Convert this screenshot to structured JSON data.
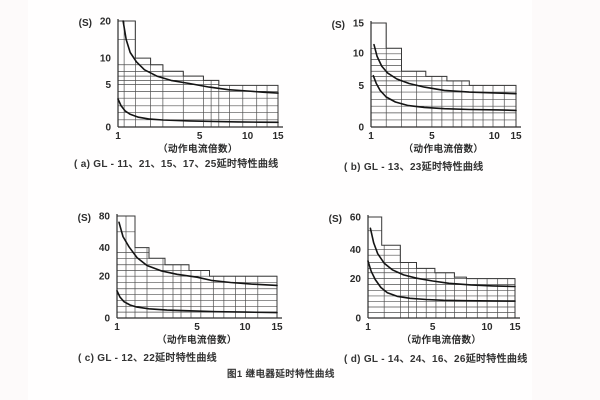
{
  "page": {
    "figure_caption": "图1  继电器延时特性曲线",
    "background": "#fdfafa",
    "paper": "#fffefe",
    "ink": "#2b2b2b",
    "grid_color": "#4f4f4f",
    "curve_color": "#141414"
  },
  "chart_data": [
    {
      "type": "line",
      "panel": "a",
      "title": "( a) GL - 11、21、15、17、25延时特性曲线",
      "xlabel": "（动作电流倍数）",
      "ylabel": "(S)",
      "xlim": [
        1,
        15
      ],
      "ylim": [
        0,
        20
      ],
      "grid": true,
      "legend": "none",
      "xticks": [
        {
          "v": 1,
          "f": 0
        },
        {
          "v": 5,
          "f": 0.51
        },
        {
          "v": 10,
          "f": 0.81
        },
        {
          "v": 15,
          "f": 1
        }
      ],
      "yticks": [
        {
          "v": 0,
          "f": 0
        },
        {
          "v": 5,
          "f": 0.4
        },
        {
          "v": 10,
          "f": 0.65
        },
        {
          "v": 20,
          "f": 1
        }
      ],
      "tolerance_steps": [
        {
          "to": 1.85,
          "top": 20
        },
        {
          "to": 2.6,
          "top": 10
        },
        {
          "to": 3.2,
          "top": 8.75
        },
        {
          "to": 4.2,
          "top": 7.5
        },
        {
          "to": 5.4,
          "top": 6.6
        },
        {
          "to": 7,
          "top": 5.8
        },
        {
          "to": 15,
          "top": 4.9
        }
      ],
      "h_gridlines": [
        0.85,
        1.7,
        2.5,
        3.4,
        4.2,
        5,
        5.8,
        6.6,
        7.5,
        8.75,
        15
      ],
      "v_gridlines": [
        1.3,
        1.85,
        2.6,
        3.2,
        4.2,
        5.4,
        6.2,
        7,
        8.1,
        9.5,
        11.5,
        13.2
      ],
      "series": [
        {
          "name": "upper limit curve",
          "points": [
            [
              1.25,
              20
            ],
            [
              1.4,
              15
            ],
            [
              1.6,
              11.5
            ],
            [
              1.9,
              9.3
            ],
            [
              2.3,
              7.8
            ],
            [
              2.9,
              6.6
            ],
            [
              3.6,
              5.8
            ],
            [
              4.5,
              5.2
            ],
            [
              6,
              4.7
            ],
            [
              8,
              4.4
            ],
            [
              10,
              4.25
            ],
            [
              12.5,
              4.1
            ],
            [
              15,
              4
            ]
          ]
        },
        {
          "name": "lower limit curve",
          "points": [
            [
              1,
              3.3
            ],
            [
              1.15,
              2.5
            ],
            [
              1.35,
              1.9
            ],
            [
              1.6,
              1.5
            ],
            [
              2,
              1.15
            ],
            [
              2.5,
              0.95
            ],
            [
              3.2,
              0.82
            ],
            [
              4.5,
              0.72
            ],
            [
              6.5,
              0.65
            ],
            [
              9,
              0.6
            ],
            [
              12,
              0.57
            ],
            [
              15,
              0.55
            ]
          ]
        }
      ]
    },
    {
      "type": "line",
      "panel": "b",
      "title": "( b) GL - 13、23延时特性曲线",
      "xlabel": "（动作电流倍数）",
      "ylabel": "(S)",
      "xlim": [
        1,
        15
      ],
      "ylim": [
        0,
        15
      ],
      "grid": true,
      "legend": "none",
      "xticks": [
        {
          "v": 1,
          "f": 0
        },
        {
          "v": 5,
          "f": 0.42
        },
        {
          "v": 10,
          "f": 0.85
        },
        {
          "v": 15,
          "f": 1
        }
      ],
      "yticks": [
        {
          "v": 0,
          "f": 0
        },
        {
          "v": 5,
          "f": 0.4
        },
        {
          "v": 10,
          "f": 0.71
        },
        {
          "v": 15,
          "f": 1
        }
      ],
      "tolerance_steps": [
        {
          "to": 2,
          "top": 15
        },
        {
          "to": 3,
          "top": 10.8
        },
        {
          "to": 4.6,
          "top": 7.2
        },
        {
          "to": 6.2,
          "top": 6.4
        },
        {
          "to": 8,
          "top": 5.7
        },
        {
          "to": 15,
          "top": 5
        }
      ],
      "h_gridlines": [
        0.85,
        1.7,
        2.5,
        3.3,
        4.2,
        5,
        5.7,
        6.4,
        7.2,
        8.1,
        9,
        9.9,
        10.8
      ],
      "v_gridlines": [
        2,
        3,
        4,
        5,
        5.8,
        6.7,
        7.4,
        8.3,
        9.1,
        9.9,
        12.3
      ],
      "series": [
        {
          "name": "upper limit curve",
          "points": [
            [
              1.2,
              11.4
            ],
            [
              1.4,
              9.5
            ],
            [
              1.7,
              8
            ],
            [
              2.1,
              6.9
            ],
            [
              2.7,
              6
            ],
            [
              3.5,
              5.3
            ],
            [
              4.5,
              4.8
            ],
            [
              6,
              4.4
            ],
            [
              8,
              4.2
            ],
            [
              10,
              4.1
            ],
            [
              15,
              4
            ]
          ]
        },
        {
          "name": "lower limit curve",
          "points": [
            [
              1.15,
              6.5
            ],
            [
              1.35,
              5.3
            ],
            [
              1.6,
              4.4
            ],
            [
              2,
              3.6
            ],
            [
              2.6,
              3
            ],
            [
              3.4,
              2.6
            ],
            [
              4.5,
              2.35
            ],
            [
              6,
              2.2
            ],
            [
              8,
              2.1
            ],
            [
              11,
              2.05
            ],
            [
              15,
              2
            ]
          ]
        }
      ]
    },
    {
      "type": "line",
      "panel": "c",
      "title": "( c) GL - 12、22延时特性曲线",
      "xlabel": "（动作电流倍数）",
      "ylabel": "(S)",
      "xlim": [
        1,
        15
      ],
      "ylim": [
        0,
        80
      ],
      "grid": true,
      "legend": "none",
      "xticks": [
        {
          "v": 1,
          "f": 0
        },
        {
          "v": 5,
          "f": 0.5
        },
        {
          "v": 10,
          "f": 0.8
        },
        {
          "v": 15,
          "f": 1
        }
      ],
      "yticks": [
        {
          "v": 0,
          "f": 0
        },
        {
          "v": 20,
          "f": 0.41
        },
        {
          "v": 40,
          "f": 0.69
        },
        {
          "v": 80,
          "f": 1
        }
      ],
      "tolerance_steps": [
        {
          "to": 1.9,
          "top": 80
        },
        {
          "to": 2.6,
          "top": 40
        },
        {
          "to": 3.4,
          "top": 32.5
        },
        {
          "to": 4.6,
          "top": 28
        },
        {
          "to": 6.3,
          "top": 24
        },
        {
          "to": 15,
          "top": 20
        }
      ],
      "h_gridlines": [
        2.8,
        5.6,
        8.4,
        11.2,
        14,
        17,
        20,
        24,
        28,
        32.5,
        36.5,
        60
      ],
      "v_gridlines": [
        1.45,
        1.9,
        2.5,
        3.3,
        3.8,
        4.2,
        4.7,
        5.4,
        6.7,
        7.8,
        9,
        10.1,
        12
      ],
      "series": [
        {
          "name": "upper limit curve",
          "points": [
            [
              1.1,
              72
            ],
            [
              1.3,
              54
            ],
            [
              1.6,
              41
            ],
            [
              2,
              33
            ],
            [
              2.5,
              27.5
            ],
            [
              3.2,
              23.8
            ],
            [
              4,
              21.3
            ],
            [
              5,
              19.5
            ],
            [
              6.5,
              18
            ],
            [
              8.5,
              17
            ],
            [
              11,
              16.2
            ],
            [
              15,
              15.6
            ]
          ]
        },
        {
          "name": "lower limit curve",
          "points": [
            [
              1,
              13
            ],
            [
              1.15,
              10
            ],
            [
              1.35,
              7.8
            ],
            [
              1.65,
              6.2
            ],
            [
              2,
              5.2
            ],
            [
              2.6,
              4.4
            ],
            [
              3.5,
              3.8
            ],
            [
              5,
              3.3
            ],
            [
              7,
              3
            ],
            [
              10,
              2.8
            ],
            [
              15,
              2.6
            ]
          ]
        }
      ]
    },
    {
      "type": "line",
      "panel": "d",
      "title": "( d) GL - 14、24、16、26延时特性曲线",
      "xlabel": "（动作电流倍数）",
      "ylabel": "(S)",
      "xlim": [
        1,
        15
      ],
      "ylim": [
        0,
        60
      ],
      "grid": true,
      "legend": "none",
      "xticks": [
        {
          "v": 1,
          "f": 0
        },
        {
          "v": 5,
          "f": 0.44
        },
        {
          "v": 10,
          "f": 0.81
        },
        {
          "v": 15,
          "f": 1
        }
      ],
      "yticks": [
        {
          "v": 0,
          "f": 0
        },
        {
          "v": 20,
          "f": 0.39
        },
        {
          "v": 40,
          "f": 0.68
        },
        {
          "v": 60,
          "f": 1
        }
      ],
      "tolerance_steps": [
        {
          "to": 1.85,
          "top": 60
        },
        {
          "to": 3,
          "top": 42.5
        },
        {
          "to": 4,
          "top": 31
        },
        {
          "to": 5.2,
          "top": 27
        },
        {
          "to": 7,
          "top": 24
        },
        {
          "to": 8.1,
          "top": 21
        },
        {
          "to": 15,
          "top": 20
        }
      ],
      "h_gridlines": [
        2.8,
        5.6,
        8.4,
        11.2,
        14,
        17,
        20,
        24,
        27,
        31,
        36,
        40,
        51.5
      ],
      "v_gridlines": [
        2,
        3,
        3.5,
        4,
        4.6,
        5.3,
        6.2,
        7,
        8.1,
        9.1,
        10,
        11.9,
        13.7
      ],
      "series": [
        {
          "name": "upper limit curve",
          "points": [
            [
              1.15,
              53
            ],
            [
              1.35,
              44
            ],
            [
              1.6,
              37
            ],
            [
              2,
              30.5
            ],
            [
              2.5,
              26
            ],
            [
              3.2,
              22.5
            ],
            [
              4,
              20.3
            ],
            [
              5,
              18.8
            ],
            [
              6.5,
              17.6
            ],
            [
              8.5,
              16.8
            ],
            [
              11,
              16.3
            ],
            [
              15,
              16
            ]
          ]
        },
        {
          "name": "lower limit curve",
          "points": [
            [
              1,
              32
            ],
            [
              1.2,
              25
            ],
            [
              1.45,
              19.5
            ],
            [
              1.8,
              15.5
            ],
            [
              2.2,
              12.8
            ],
            [
              2.8,
              11
            ],
            [
              3.6,
              10
            ],
            [
              4.6,
              9.4
            ],
            [
              6,
              9
            ],
            [
              8,
              8.8
            ],
            [
              11,
              8.7
            ],
            [
              15,
              8.6
            ]
          ]
        }
      ]
    }
  ]
}
